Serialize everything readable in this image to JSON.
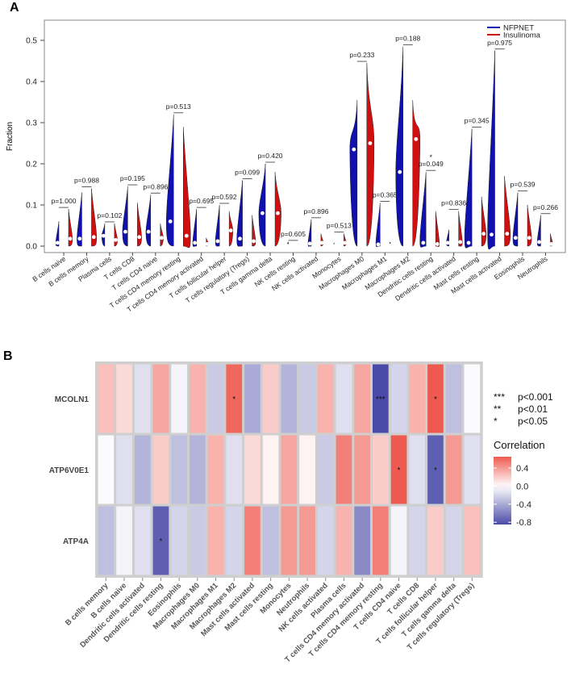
{
  "chart_data": [
    {
      "type": "violin",
      "panel_label": "A",
      "ylabel": "Fraction",
      "ylim": [
        0,
        0.55
      ],
      "yticks": [
        "0.0",
        "0.1",
        "0.2",
        "0.3",
        "0.4",
        "0.5"
      ],
      "legend": [
        {
          "name": "NFPNET",
          "color": "#1010b0"
        },
        {
          "name": "Insulinoma",
          "color": "#d01010"
        }
      ],
      "legend_position": "top-right",
      "categories": [
        "B cells naive",
        "B cells memory",
        "Plasma cells",
        "T cells CD8",
        "T cells CD4 naive",
        "T cells CD4 memory resting",
        "T cells CD4 memory activated",
        "T cells follicular helper",
        "T cells regulatory (Tregs)",
        "T cells gamma delta",
        "NK cells resting",
        "NK cells activated",
        "Monocytes",
        "Macrophages M0",
        "Macrophages M1",
        "Macrophages M2",
        "Dendritic cells resting",
        "Dendritic cells activated",
        "Mast cells resting",
        "Mast cells activated",
        "Eosinophils",
        "Neutrophils"
      ],
      "pvalues": [
        "p=1.000",
        "p=0.988",
        "p=0.102",
        "p=0.195",
        "p=0.896",
        "p=0.513",
        "p=0.695",
        "p=0.592",
        "p=0.099",
        "p=0.420",
        "p=0.605",
        "p=0.896",
        "p=0.513",
        "p=0.233",
        "p=0.365",
        "p=0.188",
        "p=0.049",
        "p=0.836",
        "p=0.345",
        "p=0.975",
        "p=0.539",
        "p=0.266"
      ],
      "significance_marks": [
        "",
        "",
        "",
        "",
        "",
        "",
        "",
        "",
        "",
        "",
        "",
        "",
        "",
        "",
        "",
        "",
        "*",
        "",
        "",
        "",
        "",
        ""
      ],
      "series": [
        {
          "name": "NFPNET",
          "max": [
            0.06,
            0.13,
            0.055,
            0.145,
            0.125,
            0.32,
            0.09,
            0.1,
            0.16,
            0.2,
            0.01,
            0.065,
            0.008,
            0.355,
            0.105,
            0.485,
            0.18,
            0.04,
            0.285,
            0.475,
            0.13,
            0.075
          ],
          "median": [
            0.008,
            0.018,
            0.025,
            0.035,
            0.035,
            0.06,
            0.008,
            0.012,
            0.018,
            0.08,
            0.001,
            0.006,
            0.001,
            0.235,
            0.004,
            0.18,
            0.008,
            0.008,
            0.008,
            0.028,
            0.02,
            0.01
          ]
        },
        {
          "name": "Insulinoma",
          "max": [
            0.09,
            0.14,
            0.055,
            0.105,
            0.055,
            0.29,
            0.02,
            0.085,
            0.075,
            0.18,
            0.005,
            0.03,
            0.03,
            0.445,
            0.01,
            0.355,
            0.085,
            0.085,
            0.12,
            0.17,
            0.1,
            0.03
          ],
          "median": [
            0.018,
            0.022,
            0.015,
            0.022,
            0.02,
            0.025,
            0.005,
            0.038,
            0.012,
            0.08,
            0.001,
            0.008,
            0.008,
            0.25,
            0.002,
            0.26,
            0.005,
            0.01,
            0.03,
            0.03,
            0.02,
            0.005
          ]
        }
      ]
    },
    {
      "type": "heatmap",
      "panel_label": "B",
      "rows": [
        "MCOLN1",
        "ATP6V0E1",
        "ATP4A"
      ],
      "columns": [
        "B cells memory",
        "B cells naive",
        "Dendritic cells activated",
        "Dendritic cells resting",
        "Eosinophils",
        "Macrophages M0",
        "Macrophages M1",
        "Macrophages M2",
        "Mast cells activated",
        "Mast cells resting",
        "Monocytes",
        "Neutrophils",
        "NK cells activated",
        "Plasma cells",
        "T cells CD4 memory activated",
        "T cells CD4 memory resting",
        "T cells CD4 naive",
        "T cells CD8",
        "T cells follicular helper",
        "T cells gamma delta",
        "T cells regulatory (Tregs)"
      ],
      "values": [
        [
          0.25,
          0.15,
          -0.15,
          0.35,
          -0.05,
          0.3,
          -0.25,
          0.6,
          -0.4,
          0.2,
          -0.35,
          -0.25,
          0.3,
          -0.15,
          0.35,
          -0.85,
          -0.2,
          0.3,
          0.65,
          -0.3,
          -0.02
        ],
        [
          -0.02,
          -0.15,
          -0.35,
          0.2,
          -0.3,
          -0.35,
          0.3,
          -0.15,
          0.15,
          0.05,
          0.35,
          0.05,
          -0.25,
          0.5,
          0.4,
          0.2,
          0.65,
          -0.15,
          -0.75,
          0.4,
          -0.15
        ],
        [
          -0.3,
          -0.05,
          -0.15,
          -0.75,
          -0.2,
          -0.25,
          0.3,
          -0.2,
          0.5,
          -0.3,
          0.4,
          0.4,
          -0.2,
          0.3,
          -0.55,
          0.5,
          -0.05,
          -0.2,
          0.2,
          -0.2,
          0.25
        ]
      ],
      "stars": [
        [
          "",
          "",
          "",
          "",
          "",
          "",
          "",
          "*",
          "",
          "",
          "",
          "",
          "",
          "",
          "",
          "***",
          "",
          "",
          "*",
          "",
          ""
        ],
        [
          "",
          "",
          "",
          "",
          "",
          "",
          "",
          "",
          "",
          "",
          "",
          "",
          "",
          "",
          "",
          "",
          "*",
          "",
          "*",
          "",
          ""
        ],
        [
          "",
          "",
          "",
          "*",
          "",
          "",
          "",
          "",
          "",
          "",
          "",
          "",
          "",
          "",
          "",
          "",
          "",
          "",
          "",
          "",
          ""
        ]
      ],
      "significance_legend": [
        {
          "stars": "***",
          "label": "p<0.001"
        },
        {
          "stars": "**",
          "label": "p<0.01"
        },
        {
          "stars": "*",
          "label": "p<0.05"
        }
      ],
      "colorbar": {
        "title": "Correlation",
        "ticks": [
          "0.4",
          "0.0",
          "-0.4",
          "-0.8"
        ],
        "tick_values": [
          0.4,
          0.0,
          -0.4,
          -0.8
        ],
        "range": [
          -0.85,
          0.65
        ],
        "colors": {
          "low": "#4a4aa8",
          "mid": "#ffffff",
          "high": "#ef5a50"
        }
      }
    }
  ]
}
